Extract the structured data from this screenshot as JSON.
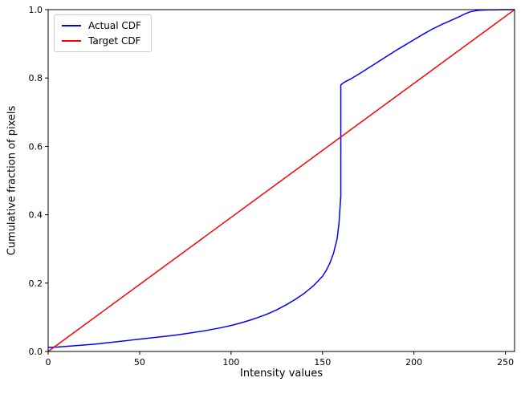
{
  "figure": {
    "background": "#ffffff",
    "axis_color": "#000000"
  },
  "chart_data": {
    "type": "line",
    "title": "",
    "xlabel": "Intensity values",
    "ylabel": "Cumulative fraction of pixels",
    "xlim": [
      0,
      255
    ],
    "ylim": [
      0.0,
      1.0
    ],
    "xticks": [
      0,
      50,
      100,
      150,
      200,
      250
    ],
    "ytick_labels": [
      "0.0",
      "0.2",
      "0.4",
      "0.6",
      "0.8",
      "1.0"
    ],
    "yticks": [
      0.0,
      0.2,
      0.4,
      0.6,
      0.8,
      1.0
    ],
    "grid": false,
    "legend_position": "upper left",
    "series": [
      {
        "name": "Actual CDF",
        "color": "#0000ff",
        "linewidth": 1.5,
        "x": [
          0,
          5,
          10,
          15,
          20,
          25,
          30,
          35,
          40,
          45,
          50,
          55,
          60,
          65,
          70,
          75,
          80,
          85,
          90,
          95,
          100,
          105,
          110,
          115,
          120,
          125,
          130,
          135,
          140,
          145,
          150,
          152,
          154,
          156,
          158,
          159,
          160,
          160,
          162,
          165,
          170,
          175,
          180,
          185,
          190,
          195,
          200,
          205,
          210,
          215,
          220,
          225,
          228,
          231,
          235,
          240,
          245,
          250,
          255
        ],
        "y": [
          0.012,
          0.013,
          0.015,
          0.017,
          0.019,
          0.021,
          0.024,
          0.027,
          0.03,
          0.033,
          0.036,
          0.039,
          0.042,
          0.045,
          0.048,
          0.052,
          0.056,
          0.06,
          0.065,
          0.07,
          0.076,
          0.083,
          0.091,
          0.1,
          0.11,
          0.122,
          0.136,
          0.152,
          0.17,
          0.192,
          0.22,
          0.237,
          0.258,
          0.287,
          0.33,
          0.375,
          0.455,
          0.78,
          0.788,
          0.796,
          0.812,
          0.829,
          0.846,
          0.863,
          0.88,
          0.896,
          0.912,
          0.928,
          0.943,
          0.956,
          0.968,
          0.98,
          0.988,
          0.994,
          0.998,
          0.999,
          0.9995,
          1.0,
          1.0
        ]
      },
      {
        "name": "Target CDF",
        "color": "#ff0000",
        "linewidth": 1.5,
        "x": [
          0,
          255
        ],
        "y": [
          0.0,
          1.0
        ]
      }
    ]
  }
}
